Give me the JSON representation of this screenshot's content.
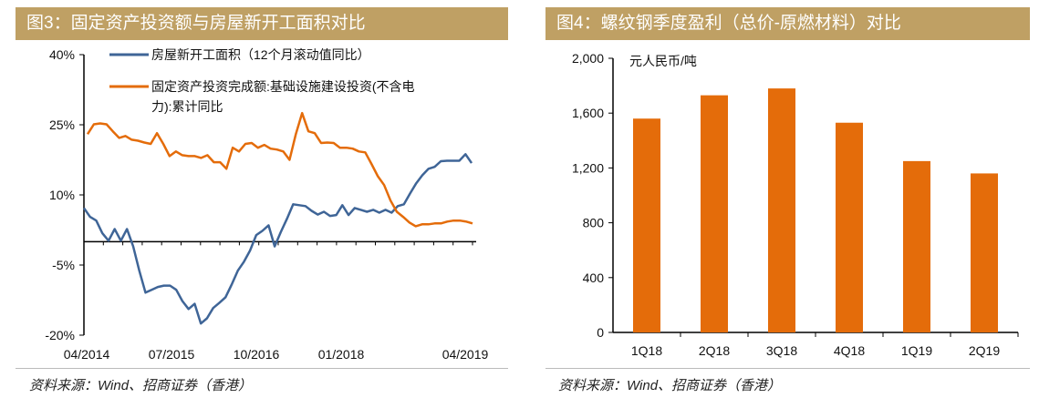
{
  "left": {
    "title": "图3：固定资产投资额与房屋新开工面积对比",
    "source": "资料来源：Wind、招商证券（香港）"
  },
  "right": {
    "title": "图4：螺纹钢季度盈利（总价-原燃材料）对比",
    "source": "资料来源：Wind、招商证券（香港）"
  },
  "chart_data": [
    {
      "type": "line",
      "title": "固定资产投资额与房屋新开工面积对比",
      "xlabel": "",
      "ylabel": "",
      "x_range": [
        "04/2014",
        "04/2019"
      ],
      "x_ticks": [
        "04/2014",
        "07/2015",
        "10/2016",
        "01/2018",
        "04/2019"
      ],
      "y_ticks": [
        "40%",
        "25%",
        "10%",
        "-5%",
        "-20%"
      ],
      "y_tick_values": [
        40,
        25,
        10,
        -5,
        -20
      ],
      "ylim": [
        -20,
        40
      ],
      "legend_position": "top",
      "series": [
        {
          "name": "房屋新开工面积（12个月滚动值同比）",
          "color": "#3F6597",
          "values": [
            7.2,
            5.3,
            4.5,
            1.8,
            0.2,
            2.7,
            0.2,
            2.7,
            -1.0,
            -6.2,
            -10.9,
            -10.3,
            -9.7,
            -9.4,
            -9.4,
            -10.3,
            -12.7,
            -14.4,
            -13.3,
            -17.5,
            -16.4,
            -14.2,
            -13.1,
            -11.9,
            -9.2,
            -6.2,
            -4.3,
            -1.9,
            1.4,
            2.3,
            3.5,
            -1.0,
            2.1,
            4.9,
            8.0,
            7.8,
            7.6,
            6.6,
            5.8,
            6.4,
            5.5,
            5.7,
            7.8,
            5.7,
            7.2,
            6.8,
            6.4,
            6.8,
            6.2,
            6.8,
            6.2,
            7.6,
            8.0,
            10.3,
            12.5,
            14.2,
            15.6,
            16.0,
            17.2,
            17.3,
            17.3,
            17.3,
            18.7,
            16.8
          ]
        },
        {
          "name": "固定资产投资完成额:基础设施建设投资(不含电力):累计同比",
          "name_line1": "固定资产投资完成额:基础设施建设投资(不含电",
          "name_line2": "力):累计同比",
          "color": "#E46C0A",
          "values": [
            23.0,
            25.1,
            25.3,
            25.1,
            23.6,
            22.2,
            22.6,
            21.8,
            21.6,
            21.2,
            20.9,
            23.2,
            20.9,
            18.3,
            19.3,
            18.5,
            18.3,
            18.3,
            17.9,
            18.5,
            17.0,
            17.0,
            15.6,
            20.1,
            19.3,
            20.9,
            21.1,
            20.1,
            20.7,
            19.9,
            19.7,
            19.3,
            17.5,
            23.0,
            27.5,
            23.6,
            23.2,
            21.1,
            21.2,
            21.1,
            20.1,
            20.1,
            19.9,
            19.3,
            19.1,
            16.6,
            14.0,
            12.1,
            8.8,
            6.4,
            5.3,
            4.1,
            3.3,
            3.7,
            3.7,
            3.9,
            3.9,
            4.3,
            4.5,
            4.5,
            4.3,
            3.9
          ]
        }
      ]
    },
    {
      "type": "bar",
      "title": "螺纹钢季度盈利（总价-原燃材料）对比",
      "unit_label": "元人民币/吨",
      "categories": [
        "1Q18",
        "2Q18",
        "3Q18",
        "4Q18",
        "1Q19",
        "2Q19"
      ],
      "values": [
        1560,
        1730,
        1780,
        1530,
        1250,
        1160
      ],
      "y_ticks": [
        "2,000",
        "1,600",
        "1,200",
        "800",
        "400",
        "0"
      ],
      "y_tick_values": [
        2000,
        1600,
        1200,
        800,
        400,
        0
      ],
      "ylim": [
        0,
        2000
      ],
      "color": "#E46C0A"
    }
  ]
}
